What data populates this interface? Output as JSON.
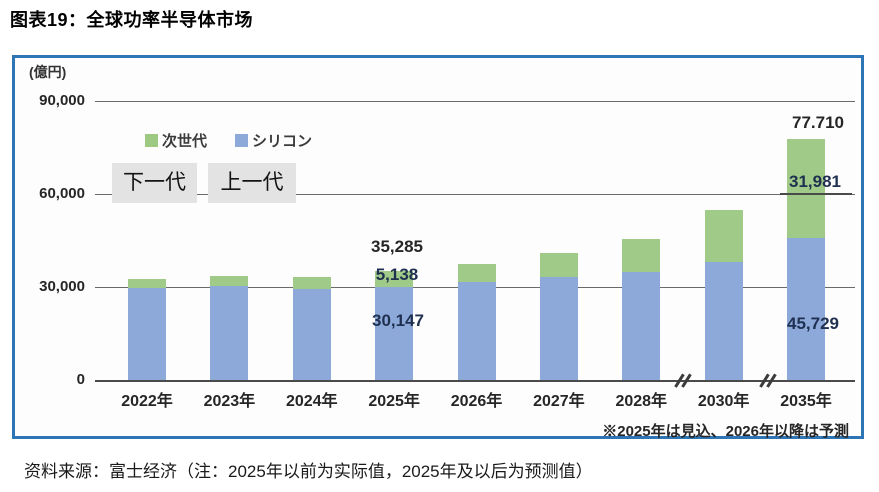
{
  "page": {
    "title": "图表19：全球功率半导体市场",
    "source": "资料来源：富士经济（注：2025年以前为实际值，2025年及以后为预测值）"
  },
  "chart": {
    "unit_label": "(億円)",
    "y_axis": [
      {
        "label": "90,000",
        "value": 90000
      },
      {
        "label": "60,000",
        "value": 60000
      },
      {
        "label": "30,000",
        "value": 30000
      },
      {
        "label": "0",
        "value": 0
      }
    ],
    "legend": [
      {
        "label": "次世代",
        "color": "#9dc983"
      },
      {
        "label": "シリコン",
        "color": "#8da9d9"
      }
    ],
    "overlays": [
      {
        "label": "下一代"
      },
      {
        "label": "上一代"
      }
    ],
    "note": "※2025年は見込、2026年以降は予測",
    "data_labels": {
      "total_2025": "35,285",
      "nextgen_2025": "5,138",
      "silicon_2025": "30,147",
      "total_2035": "77.710",
      "nextgen_2035": "31,981",
      "silicon_2035": "45,729"
    }
  },
  "chart_data": {
    "type": "bar",
    "stacked": true,
    "title": "图表19：全球功率半导体市场",
    "unit": "億円",
    "categories": [
      "2022年",
      "2023年",
      "2024年",
      "2025年",
      "2026年",
      "2027年",
      "2028年",
      "2030年",
      "2035年"
    ],
    "series": [
      {
        "name": "シリコン",
        "color": "#8da9d9",
        "values": [
          29600,
          30200,
          29400,
          30147,
          31500,
          33300,
          34700,
          38000,
          45729
        ]
      },
      {
        "name": "次世代",
        "color": "#9fca87",
        "values": [
          2900,
          3400,
          3800,
          5138,
          6000,
          7800,
          10700,
          17000,
          31981
        ]
      }
    ],
    "totals_labeled": {
      "2025年": 35285,
      "2035年": 77710
    },
    "ylim": [
      0,
      90000
    ],
    "y_ticks": [
      0,
      30000,
      60000,
      90000
    ],
    "grid": "horizontal",
    "legend_position": "top-left-inside",
    "axis_breaks_after": [
      "2028年",
      "2030年"
    ],
    "annotations": [
      "※2025年は見込、2026年以降は予測"
    ]
  }
}
